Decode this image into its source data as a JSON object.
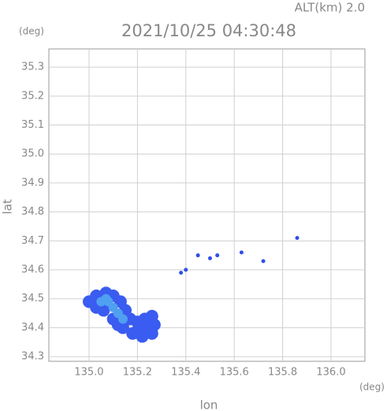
{
  "chart_data": {
    "type": "scatter",
    "title": "2021/10/25 04:30:48",
    "annotation": "ALT(km) 2.0",
    "y_unit": "(deg)",
    "x_unit": "(deg)",
    "xlabel": "lon",
    "ylabel": "lat",
    "xlim": [
      134.834,
      136.14
    ],
    "ylim": [
      34.284,
      35.363
    ],
    "xticks": [
      {
        "value": 135.0,
        "label": "135.0"
      },
      135.2,
      135.4,
      135.6,
      135.8,
      {
        "value": 136.0,
        "label": "136.0"
      }
    ],
    "yticks": [
      34.3,
      34.4,
      34.5,
      34.6,
      34.7,
      34.8,
      34.9,
      {
        "value": 35.0,
        "label": "35.0"
      },
      35.1,
      35.2,
      35.3
    ],
    "grid": true,
    "series": [
      {
        "color": "#3a5cf0",
        "x": [
          135.0,
          135.03,
          135.07,
          135.1,
          135.13,
          135.15,
          135.17,
          135.2,
          135.23,
          135.26,
          135.27,
          135.26,
          135.22,
          135.18,
          135.14,
          135.1,
          135.06,
          135.03,
          135.2,
          135.24,
          135.12
        ],
        "y": [
          34.49,
          34.51,
          34.52,
          34.51,
          34.49,
          34.46,
          34.43,
          34.42,
          34.43,
          34.44,
          34.41,
          34.38,
          34.37,
          34.38,
          34.4,
          34.43,
          34.46,
          34.47,
          34.39,
          34.4,
          34.41
        ]
      },
      {
        "color": "#4fa0f0",
        "x": [
          135.05,
          135.08,
          135.1,
          135.12,
          135.14,
          135.07
        ],
        "y": [
          34.49,
          34.49,
          34.47,
          34.45,
          34.43,
          34.5
        ]
      },
      {
        "color": "#2f4fe8",
        "x": [
          135.38,
          135.4,
          135.45,
          135.5,
          135.53,
          135.72,
          135.63,
          135.86
        ],
        "y": [
          34.59,
          34.6,
          34.65,
          34.64,
          34.65,
          34.63,
          34.66,
          34.71
        ]
      }
    ]
  }
}
